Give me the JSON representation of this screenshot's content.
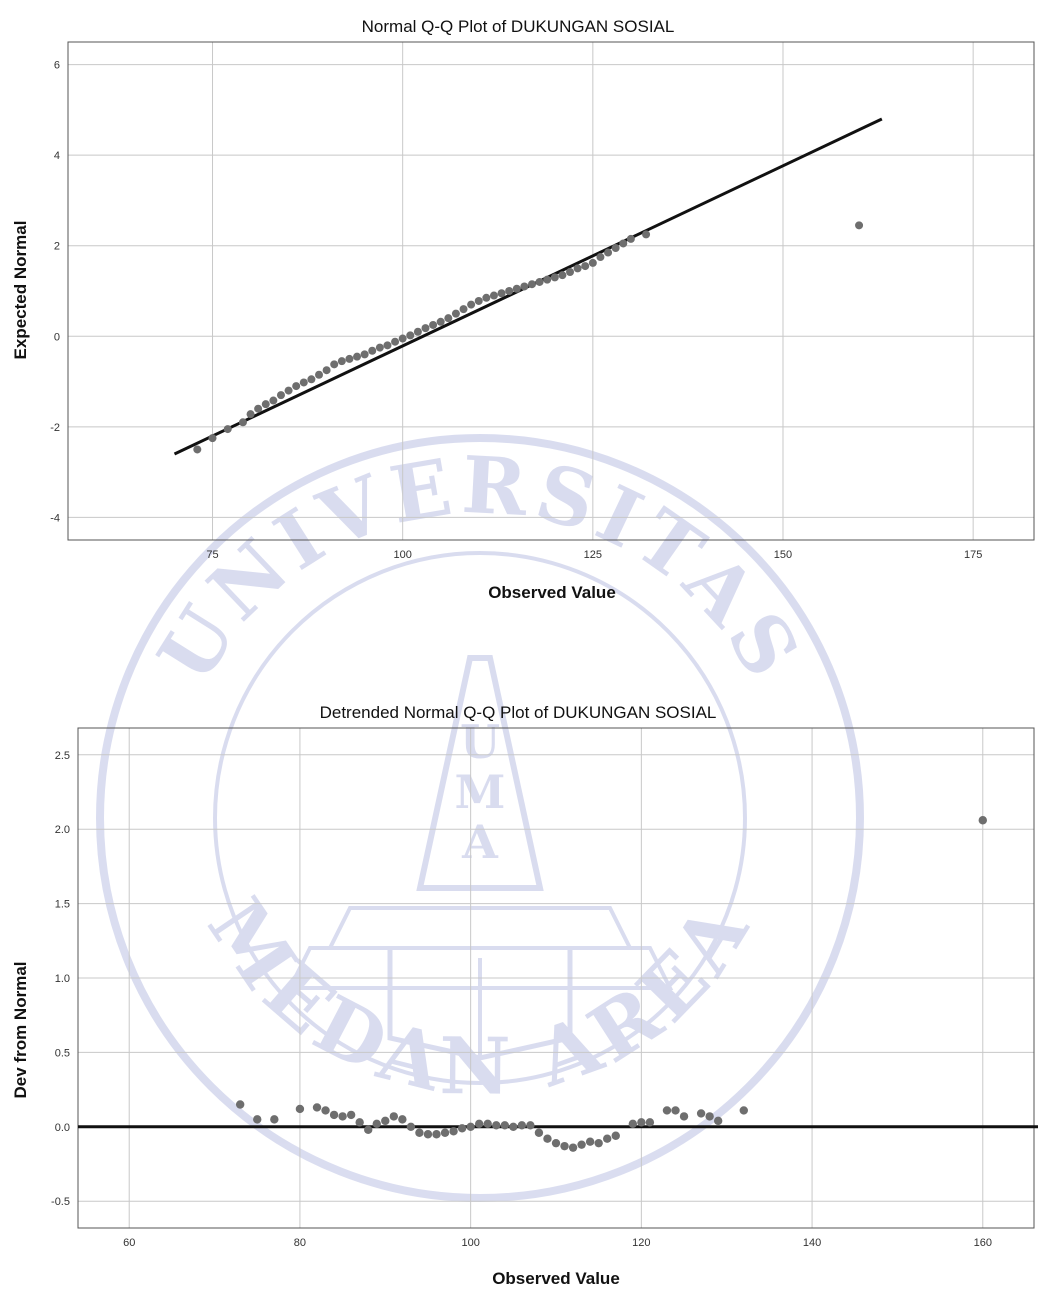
{
  "chart_data": [
    {
      "type": "scatter",
      "title": "Normal Q-Q Plot of DUKUNGAN SOSIAL",
      "xlabel": "Observed Value",
      "ylabel": "Expected Normal",
      "xlim": [
        56,
        183
      ],
      "ylim": [
        -4.5,
        6.5
      ],
      "xticks": [
        75,
        100,
        125,
        150,
        175
      ],
      "yticks": [
        -4,
        -2,
        0,
        2,
        4,
        6
      ],
      "grid": true,
      "reference_line": {
        "x": [
          70,
          163
        ],
        "y": [
          -2.6,
          4.8
        ]
      },
      "points": {
        "x": [
          73,
          75,
          77,
          79,
          80,
          81,
          82,
          83,
          84,
          85,
          86,
          87,
          88,
          89,
          90,
          91,
          92,
          93,
          94,
          95,
          96,
          97,
          98,
          99,
          100,
          101,
          102,
          103,
          104,
          105,
          106,
          107,
          108,
          109,
          110,
          111,
          112,
          113,
          114,
          115,
          116,
          117,
          118,
          119,
          120,
          121,
          122,
          123,
          124,
          125,
          126,
          127,
          128,
          129,
          130,
          132,
          160
        ],
        "y": [
          -2.5,
          -2.25,
          -2.05,
          -1.9,
          -1.72,
          -1.6,
          -1.5,
          -1.42,
          -1.3,
          -1.2,
          -1.1,
          -1.02,
          -0.95,
          -0.85,
          -0.75,
          -0.62,
          -0.55,
          -0.5,
          -0.45,
          -0.4,
          -0.32,
          -0.25,
          -0.2,
          -0.12,
          -0.05,
          0.02,
          0.1,
          0.18,
          0.25,
          0.32,
          0.4,
          0.5,
          0.6,
          0.7,
          0.78,
          0.85,
          0.9,
          0.95,
          1.0,
          1.05,
          1.1,
          1.15,
          1.2,
          1.25,
          1.3,
          1.35,
          1.42,
          1.5,
          1.55,
          1.62,
          1.75,
          1.85,
          1.95,
          2.05,
          2.15,
          2.25,
          2.45
        ]
      }
    },
    {
      "type": "scatter",
      "title": "Detrended Normal Q-Q Plot of DUKUNGAN SOSIAL",
      "xlabel": "Observed Value",
      "ylabel": "Dev from Normal",
      "xlim": [
        54,
        166
      ],
      "ylim": [
        -0.68,
        2.68
      ],
      "xticks": [
        60,
        80,
        100,
        120,
        140,
        160
      ],
      "yticks": [
        -0.5,
        0.0,
        0.5,
        1.0,
        1.5,
        2.0,
        2.5
      ],
      "ytick_labels": [
        "-0.5",
        "0.0",
        "0.5",
        "1.0",
        "1.5",
        "2.0",
        "2.5"
      ],
      "grid": true,
      "reference_line": {
        "y": 0
      },
      "points": {
        "x": [
          73,
          75,
          77,
          80,
          82,
          83,
          84,
          85,
          86,
          87,
          88,
          89,
          90,
          91,
          92,
          93,
          94,
          95,
          96,
          97,
          98,
          99,
          100,
          101,
          102,
          103,
          104,
          105,
          106,
          107,
          108,
          109,
          110,
          111,
          112,
          113,
          114,
          115,
          116,
          117,
          119,
          120,
          121,
          123,
          124,
          125,
          127,
          128,
          129,
          132,
          160
        ],
        "y": [
          0.15,
          0.05,
          0.05,
          0.12,
          0.13,
          0.11,
          0.08,
          0.07,
          0.08,
          0.03,
          -0.02,
          0.02,
          0.04,
          0.07,
          0.05,
          0.0,
          -0.04,
          -0.05,
          -0.05,
          -0.04,
          -0.03,
          -0.01,
          0.0,
          0.02,
          0.02,
          0.01,
          0.01,
          0.0,
          0.01,
          0.01,
          -0.04,
          -0.08,
          -0.11,
          -0.13,
          -0.14,
          -0.12,
          -0.1,
          -0.11,
          -0.08,
          -0.06,
          0.02,
          0.03,
          0.03,
          0.11,
          0.11,
          0.07,
          0.09,
          0.07,
          0.04,
          0.11,
          2.06
        ]
      }
    }
  ],
  "watermark": {
    "arc_top": "UNIVERSITAS",
    "arc_bottom": "MEDAN AREA",
    "monogram": [
      "U",
      "M",
      "A"
    ],
    "color": "#7b86c9"
  }
}
